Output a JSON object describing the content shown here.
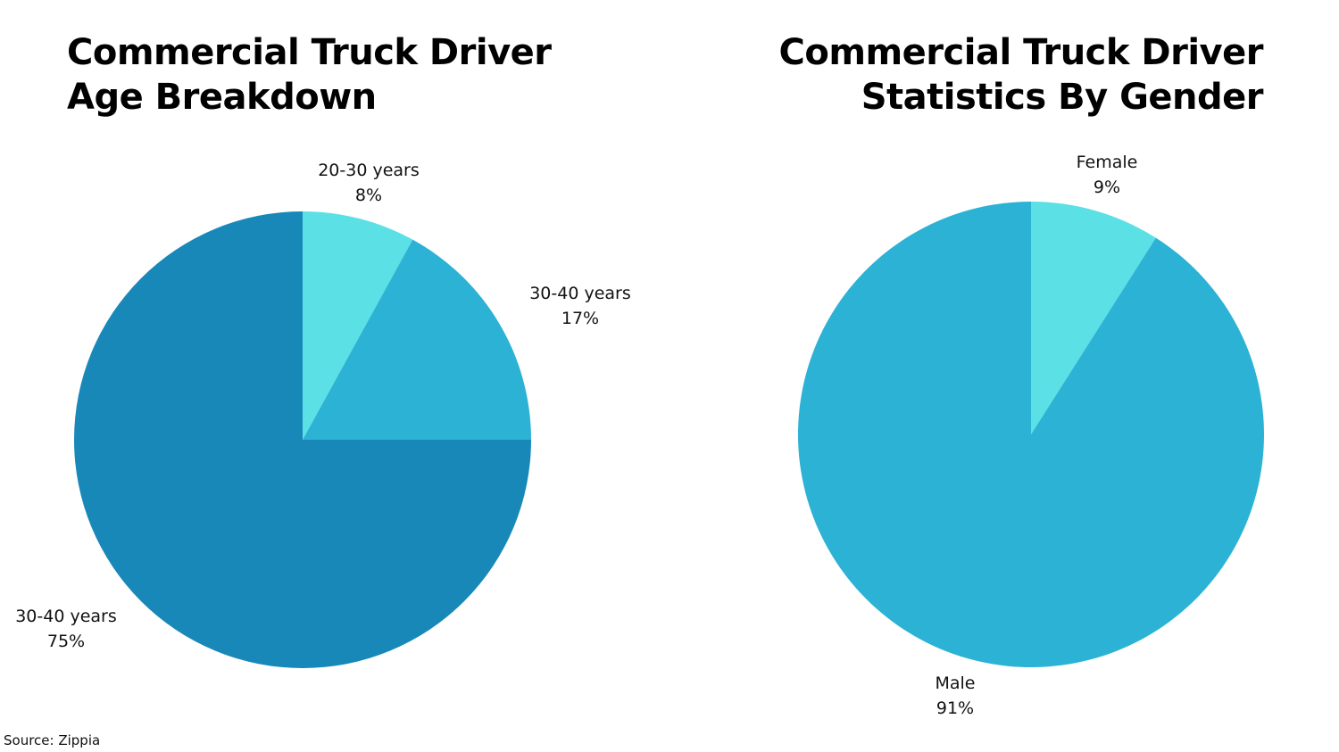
{
  "chart_data": [
    {
      "type": "pie",
      "title": "Commercial Truck Driver Age Breakdown",
      "title_lines": [
        "Commercial Truck Driver",
        "Age Breakdown"
      ],
      "slices": [
        {
          "label": "20-30 years",
          "value": 8,
          "value_label": "8%",
          "color": "#5BE0E5"
        },
        {
          "label": "30-40 years",
          "value": 17,
          "value_label": "17%",
          "color": "#2CB2D5"
        },
        {
          "label": "30-40 years",
          "value": 75,
          "value_label": "75%",
          "color": "#1888B9"
        }
      ]
    },
    {
      "type": "pie",
      "title": "Commercial Truck Driver Statistics By Gender",
      "title_lines": [
        "Commercial Truck Driver",
        "Statistics By Gender"
      ],
      "slices": [
        {
          "label": "Female",
          "value": 9,
          "value_label": "9%",
          "color": "#5BE0E5"
        },
        {
          "label": "Male",
          "value": 91,
          "value_label": "91%",
          "color": "#2CB2D5"
        }
      ]
    }
  ],
  "source": "Source: Zippia"
}
